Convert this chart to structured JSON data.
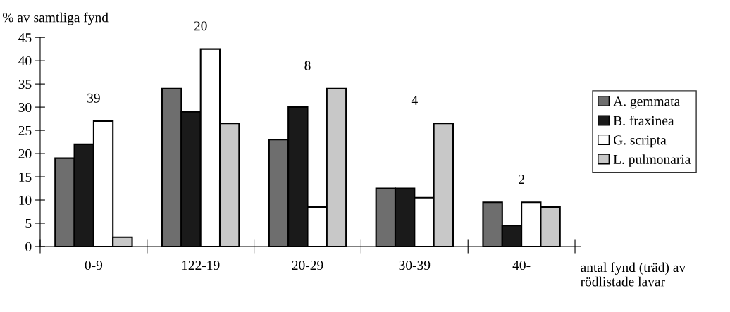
{
  "chart_data": {
    "type": "bar",
    "ylabel": "% av samtliga fynd",
    "xlabel": "antal fynd (träd) av\nrödlistade lavar",
    "categories": [
      "0-9",
      "122-19",
      "20-29",
      "30-39",
      "40-"
    ],
    "series": [
      {
        "name": "A. gemmata",
        "color": "#6e6e6e",
        "values": [
          19,
          34,
          23,
          12.5,
          9.5
        ]
      },
      {
        "name": "B. fraxinea",
        "color": "#1a1a1a",
        "values": [
          22,
          29,
          30,
          12.5,
          4.5
        ]
      },
      {
        "name": "G. scripta",
        "color": "#ffffff",
        "values": [
          27,
          42.5,
          8.5,
          10.5,
          9.5
        ]
      },
      {
        "name": "L. pulmonaria",
        "color": "#c8c8c8",
        "values": [
          2,
          26.5,
          34,
          26.5,
          8.5
        ]
      }
    ],
    "ylim": [
      0,
      45
    ],
    "yticks": [
      0,
      5,
      10,
      15,
      20,
      25,
      30,
      35,
      40,
      45
    ],
    "grid": false,
    "legend": "right",
    "annotations": [
      "39",
      "20",
      "8",
      "4",
      "2"
    ]
  }
}
